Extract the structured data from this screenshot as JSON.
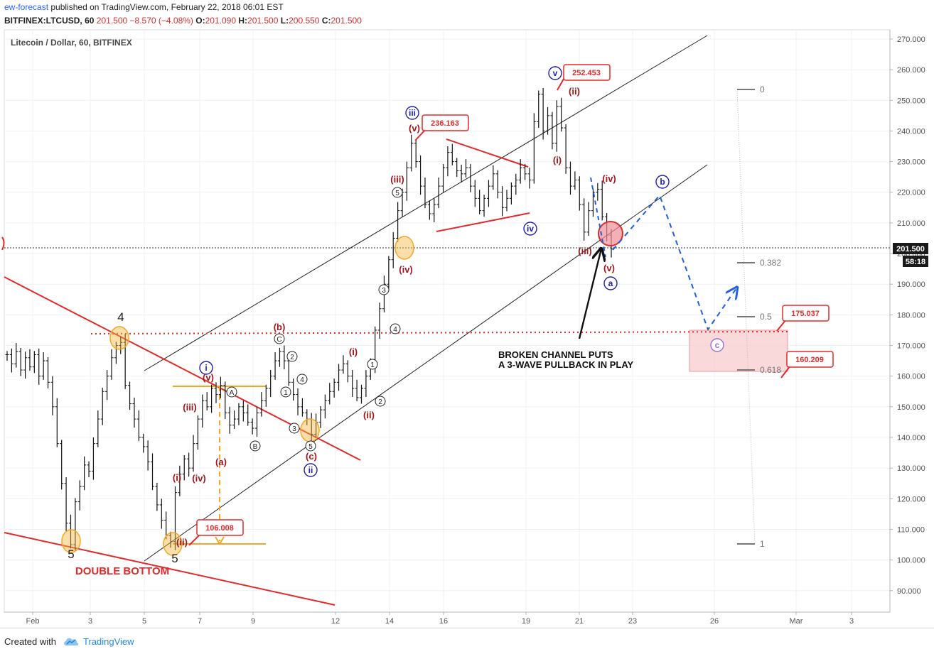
{
  "header": {
    "publisher": "ew-forecast",
    "published_text": "published on TradingView.com, February 22, 2018 06:01 EST",
    "symbol": "BITFINEX:LTCUSD, 60",
    "last": "201.500",
    "change": "−8.570 (−4.08%)",
    "o_label": "O:",
    "o": "201.090",
    "h_label": "H:",
    "h": "201.500",
    "l_label": "L:",
    "l": "200.550",
    "c_label": "C:",
    "c": "201.500"
  },
  "chart_title": "Litecoin / Dollar, 60, BITFINEX",
  "price_badge": {
    "price": "201.500",
    "countdown": "58:18"
  },
  "colors": {
    "red": "#e52828",
    "dark_red": "#a1151b",
    "blue": "#1e22a8",
    "orange": "#f5a623",
    "dashed_blue": "#1f5fe0",
    "zone_fill": "#f8c9cc"
  },
  "chart_data": {
    "type": "line",
    "title": "Litecoin / Dollar, 60, BITFINEX",
    "ylim": [
      83,
      273
    ],
    "y_ticks": [
      90,
      100,
      110,
      120,
      130,
      140,
      150,
      160,
      170,
      180,
      190,
      200,
      210,
      220,
      230,
      240,
      250,
      260,
      270
    ],
    "y_tick_labels": [
      "90.000",
      "100.000",
      "110.000",
      "120.000",
      "130.000",
      "140.000",
      "150.000",
      "160.000",
      "170.000",
      "180.000",
      "190.000",
      "200.000",
      "210.000",
      "220.000",
      "230.000",
      "240.000",
      "250.000",
      "260.000",
      "270.000"
    ],
    "x_tick_labels": [
      "Feb",
      "3",
      "5",
      "7",
      "9",
      "12",
      "14",
      "16",
      "19",
      "21",
      "23",
      "26",
      "Mar",
      "3"
    ],
    "grid": true,
    "series": [
      {
        "values": [
          167,
          164,
          168,
          162,
          166,
          163,
          167,
          160,
          165,
          158,
          150,
          138,
          125,
          112,
          105,
          119,
          124,
          131,
          129,
          138,
          146,
          155,
          160,
          166,
          170,
          171,
          157,
          151,
          146,
          140,
          137,
          132,
          124,
          118,
          113,
          108,
          106,
          122,
          128,
          133,
          130,
          138,
          146,
          152,
          150,
          156,
          154,
          157,
          148,
          144,
          146,
          150,
          148,
          145,
          143,
          148,
          152,
          156,
          160,
          165,
          168,
          165,
          158,
          154,
          150,
          148,
          146,
          141,
          145,
          149,
          152,
          155,
          158,
          162,
          164,
          160,
          156,
          153,
          156,
          160,
          163,
          175,
          182,
          190,
          198,
          205,
          214,
          220,
          228,
          236,
          230,
          222,
          216,
          213,
          216,
          222,
          228,
          233,
          230,
          227,
          226,
          228,
          222,
          218,
          214,
          218,
          222,
          226,
          220,
          215,
          218,
          222,
          224,
          228,
          226,
          224,
          243,
          252,
          240,
          245,
          236,
          248,
          241,
          228,
          222,
          224,
          216,
          207,
          214,
          220,
          221,
          212,
          206,
          201.5
        ]
      }
    ],
    "annotations": [
      "252.453",
      "236.163",
      "106.008",
      "175.037",
      "160.209",
      "0",
      "0.382",
      "0.5",
      "0.618",
      "1",
      "4",
      "5",
      "5",
      "DOUBLE BOTTOM",
      "BROKEN CHANNEL PUTS",
      "A 3-WAVE PULLBACK IN PLAY",
      "i",
      "ii",
      "iii",
      "iv",
      "v",
      "a",
      "b",
      "c",
      "(i)",
      "(ii)",
      "(iii)",
      "(iv)",
      "(v)",
      "(a)",
      "(b)",
      "(c)",
      "1",
      "2",
      "3",
      "4",
      "5",
      "A",
      "B",
      "C"
    ]
  },
  "labels": {
    "wave4": "4",
    "wave5a": "5",
    "wave5b": "5",
    "double_bottom": "DOUBLE BOTTOM",
    "note_line1": "BROKEN CHANNEL PUTS",
    "note_line2": "A 3-WAVE PULLBACK IN PLAY",
    "box_252": "252.453",
    "box_236": "236.163",
    "box_106": "106.008",
    "box_175": "175.037",
    "box_160": "160.209",
    "fib_0": "0",
    "fib_382": "0.382",
    "fib_5": "0.5",
    "fib_618": "0.618",
    "fib_1": "1",
    "circ_i": "i",
    "circ_ii": "ii",
    "circ_iii": "iii",
    "circ_iv": "iv",
    "circ_v": "v",
    "circ_a": "a",
    "circ_b": "b",
    "circ_c": "c",
    "p_i": "(i)",
    "p_ii": "(ii)",
    "p_iii": "(iii)",
    "p_iv": "(iv)",
    "p_v": "(v)",
    "p_a": "(a)",
    "p_b": "(b)",
    "p_c": "(c)",
    "n1": "1",
    "n2": "2",
    "n3": "3",
    "n4": "4",
    "n5": "5",
    "nA": "A",
    "nB": "B",
    "nC": "C"
  },
  "footer": {
    "created_with": "Created with",
    "brand": "TradingView"
  }
}
